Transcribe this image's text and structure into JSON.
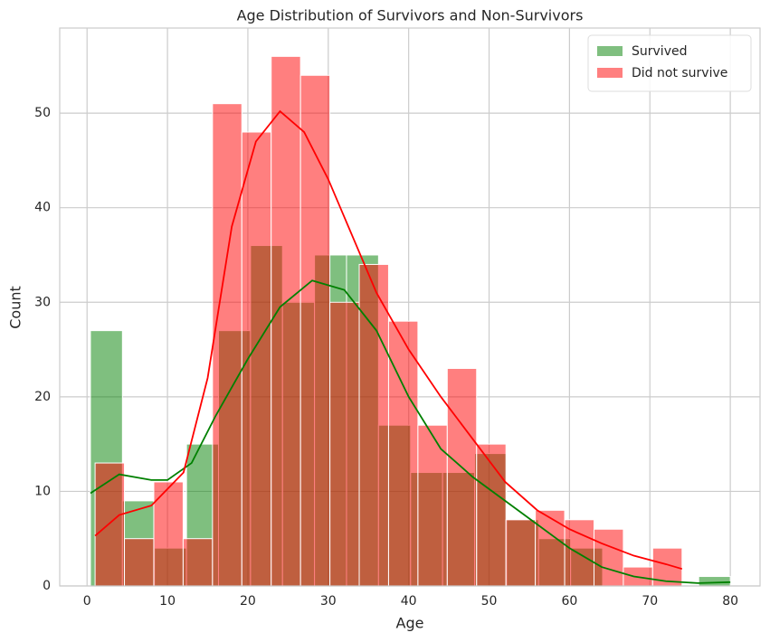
{
  "chart_data": {
    "type": "histogram",
    "title": "Age Distribution of Survivors and Non-Survivors",
    "xlabel": "Age",
    "ylabel": "Count",
    "xlim": [
      -3.4,
      83.7
    ],
    "ylim": [
      0,
      59
    ],
    "xticks": [
      0,
      10,
      20,
      30,
      40,
      50,
      60,
      70,
      80
    ],
    "yticks": [
      0,
      10,
      20,
      30,
      40,
      50
    ],
    "grid": true,
    "legend": "upper right",
    "series": [
      {
        "name": "Survived",
        "color": "#008000",
        "bins": [
          0.42,
          4.4,
          8.38,
          12.37,
          16.35,
          20.33,
          24.31,
          28.29,
          32.27,
          36.25,
          40.24,
          44.22,
          48.2,
          52.18,
          56.16,
          60.14,
          64.12,
          68.11,
          72.09,
          76.07,
          80.0
        ],
        "values": [
          27,
          9,
          4,
          15,
          27,
          36,
          30,
          35,
          35,
          17,
          12,
          12,
          14,
          7,
          5,
          4,
          0,
          0,
          0,
          1
        ],
        "kde_x": [
          0.42,
          4,
          8,
          10,
          13,
          16,
          20,
          24,
          28,
          32,
          36,
          40,
          44,
          48,
          52,
          56,
          60,
          64,
          68,
          72,
          76,
          80
        ],
        "kde_y": [
          9.8,
          11.8,
          11.2,
          11.2,
          13,
          18,
          24,
          29.5,
          32.3,
          31.3,
          27,
          20,
          14.5,
          11.5,
          9,
          6.5,
          4,
          2,
          1,
          0.5,
          0.3,
          0.4
        ]
      },
      {
        "name": "Did not survive",
        "color": "#ff0000",
        "bins": [
          1,
          4.65,
          8.3,
          11.95,
          15.6,
          19.25,
          22.9,
          26.55,
          30.2,
          33.85,
          37.5,
          41.15,
          44.8,
          48.45,
          52.1,
          55.75,
          59.4,
          63.05,
          66.7,
          70.35,
          74
        ],
        "values": [
          13,
          5,
          11,
          5,
          51,
          48,
          56,
          54,
          30,
          34,
          28,
          17,
          23,
          15,
          7,
          8,
          7,
          6,
          2,
          4
        ],
        "kde_x": [
          1,
          4,
          8,
          12,
          15,
          18,
          21,
          24,
          27,
          30,
          33,
          36,
          40,
          44,
          48,
          52,
          56,
          60,
          64,
          68,
          72,
          74
        ],
        "kde_y": [
          5.3,
          7.5,
          8.5,
          12,
          22,
          38,
          47,
          50.2,
          48,
          43,
          37,
          31,
          25,
          20,
          15.5,
          11,
          8,
          6,
          4.5,
          3.2,
          2.3,
          1.8
        ]
      }
    ]
  }
}
